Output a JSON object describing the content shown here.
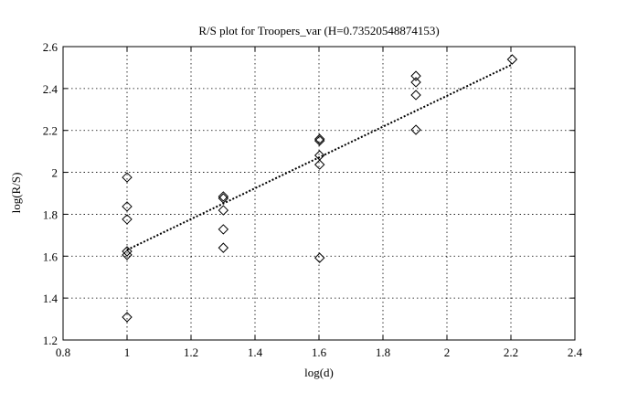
{
  "chart_data": {
    "type": "scatter",
    "title": "R/S plot for Troopers_var (H=0.73520548874153)",
    "x_label": "log(d)",
    "y_label": "log(R/S)",
    "series": [
      {
        "x": [
          1,
          1,
          1,
          1,
          1,
          1,
          1.301,
          1.301,
          1.301,
          1.301,
          1.301,
          1.602,
          1.602,
          1.602,
          1.602,
          1.602,
          1.903,
          1.903,
          1.903,
          1.903,
          2.204
        ],
        "y": [
          1.976,
          1.837,
          1.776,
          1.623,
          1.606,
          1.309,
          1.885,
          1.876,
          1.819,
          1.728,
          1.64,
          2.159,
          2.151,
          2.081,
          2.037,
          1.592,
          2.46,
          2.43,
          2.369,
          2.203,
          2.539
        ],
        "color": "#000000"
      }
    ],
    "fit": {
      "x": [
        1,
        2.204
      ],
      "y": [
        1.63,
        2.515
      ],
      "color": "#000000"
    },
    "xlim": [
      0.8,
      2.4
    ],
    "xticks": [
      0.8,
      1,
      1.2,
      1.4,
      1.6,
      1.8,
      2,
      2.2,
      2.4
    ],
    "ylim": [
      1.2,
      2.6
    ],
    "yticks": [
      1.2,
      1.4,
      1.6,
      1.8,
      2,
      2.2,
      2.4,
      2.6
    ],
    "grid": true
  }
}
